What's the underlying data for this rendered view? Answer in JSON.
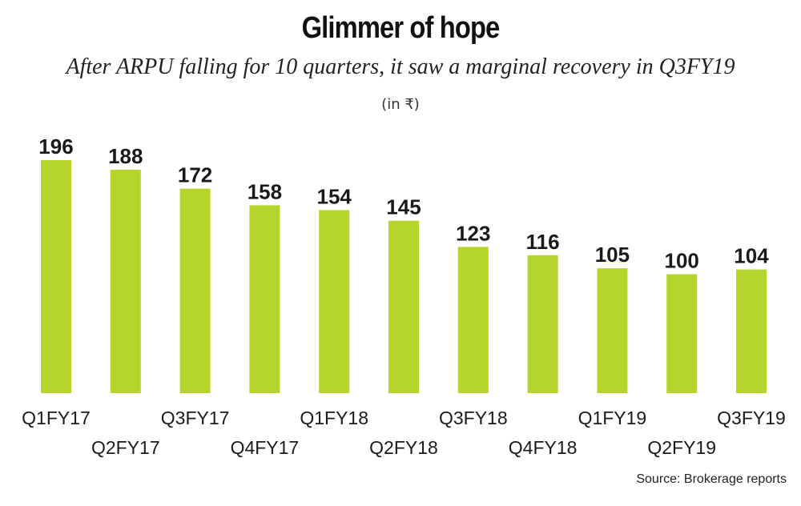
{
  "chart_data": {
    "type": "bar",
    "title": "Glimmer of hope",
    "subtitle": "After ARPU falling for 10 quarters, it saw a marginal recovery in Q3FY19",
    "unit_label": "(in ₹)",
    "categories": [
      "Q1FY17",
      "Q2FY17",
      "Q3FY17",
      "Q4FY17",
      "Q1FY18",
      "Q2FY18",
      "Q3FY18",
      "Q4FY18",
      "Q1FY19",
      "Q2FY19",
      "Q3FY19"
    ],
    "values": [
      196,
      188,
      172,
      158,
      154,
      145,
      123,
      116,
      105,
      100,
      104
    ],
    "xlabel": "",
    "ylabel": "",
    "ylim": [
      0,
      196
    ],
    "grid": false,
    "legend": "none",
    "bar_color": "#b5d42c",
    "source": "Source: Brokerage reports"
  }
}
